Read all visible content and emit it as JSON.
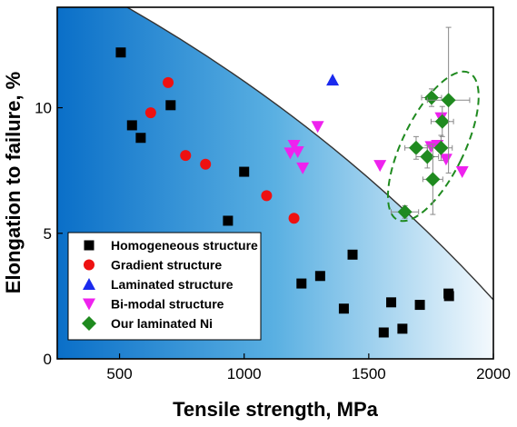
{
  "chart_data": {
    "type": "scatter",
    "title": "",
    "xlabel": "Tensile strength, MPa",
    "ylabel": "Elongation to failure, %",
    "xlim": [
      250,
      2000
    ],
    "ylim": [
      0,
      14
    ],
    "x_ticks": [
      500,
      1000,
      1500,
      2000
    ],
    "y_ticks": [
      0,
      5,
      10
    ],
    "legend_position": "bottom-left",
    "series": [
      {
        "name": "Homogeneous structure",
        "marker": "square",
        "color": "#000000",
        "points": [
          {
            "x": 505,
            "y": 12.2
          },
          {
            "x": 550,
            "y": 9.3
          },
          {
            "x": 585,
            "y": 8.8
          },
          {
            "x": 705,
            "y": 10.1
          },
          {
            "x": 935,
            "y": 5.5
          },
          {
            "x": 1000,
            "y": 7.45
          },
          {
            "x": 1230,
            "y": 3.0
          },
          {
            "x": 1305,
            "y": 3.3
          },
          {
            "x": 1400,
            "y": 2.0
          },
          {
            "x": 1435,
            "y": 4.15
          },
          {
            "x": 1560,
            "y": 1.05
          },
          {
            "x": 1590,
            "y": 2.25
          },
          {
            "x": 1635,
            "y": 1.2
          },
          {
            "x": 1705,
            "y": 2.15
          },
          {
            "x": 1820,
            "y": 2.6
          },
          {
            "x": 1822,
            "y": 2.5
          }
        ]
      },
      {
        "name": "Gradient structure",
        "marker": "circle",
        "color": "#ee1111",
        "points": [
          {
            "x": 625,
            "y": 9.8
          },
          {
            "x": 695,
            "y": 11.0
          },
          {
            "x": 765,
            "y": 8.1
          },
          {
            "x": 845,
            "y": 7.75
          },
          {
            "x": 1090,
            "y": 6.5
          },
          {
            "x": 1200,
            "y": 5.6
          }
        ]
      },
      {
        "name": "Laminated structure",
        "marker": "triangle-up",
        "color": "#1a2aee",
        "points": [
          {
            "x": 1355,
            "y": 11.1
          }
        ]
      },
      {
        "name": "Bi-modal structure",
        "marker": "triangle-down",
        "color": "#ee22ee",
        "points": [
          {
            "x": 1185,
            "y": 8.2
          },
          {
            "x": 1200,
            "y": 8.5
          },
          {
            "x": 1215,
            "y": 8.25
          },
          {
            "x": 1235,
            "y": 7.6
          },
          {
            "x": 1295,
            "y": 9.25
          },
          {
            "x": 1545,
            "y": 7.7
          },
          {
            "x": 1750,
            "y": 8.45
          },
          {
            "x": 1775,
            "y": 8.5
          },
          {
            "x": 1790,
            "y": 9.6
          },
          {
            "x": 1810,
            "y": 7.95
          },
          {
            "x": 1875,
            "y": 7.45
          }
        ]
      },
      {
        "name": "Our laminated Ni",
        "marker": "diamond",
        "color": "#1f8a1f",
        "points": [
          {
            "x": 1645,
            "y": 5.85,
            "xerr": 55,
            "yerr": 0.25
          },
          {
            "x": 1690,
            "y": 8.4,
            "xerr": 45,
            "yerr": 0.45
          },
          {
            "x": 1735,
            "y": 8.05,
            "xerr": 45,
            "yerr": 0.45
          },
          {
            "x": 1752,
            "y": 10.4,
            "xerr": 40,
            "yerr": 0.35
          },
          {
            "x": 1757,
            "y": 7.15,
            "xerr": 40,
            "yerr": 1.4
          },
          {
            "x": 1790,
            "y": 8.4,
            "xerr": 45,
            "yerr": 0.5
          },
          {
            "x": 1795,
            "y": 9.45,
            "xerr": 45,
            "yerr": 0.6
          },
          {
            "x": 1820,
            "y": 10.3,
            "xerr": 85,
            "yerr": 2.9
          }
        ]
      }
    ]
  }
}
